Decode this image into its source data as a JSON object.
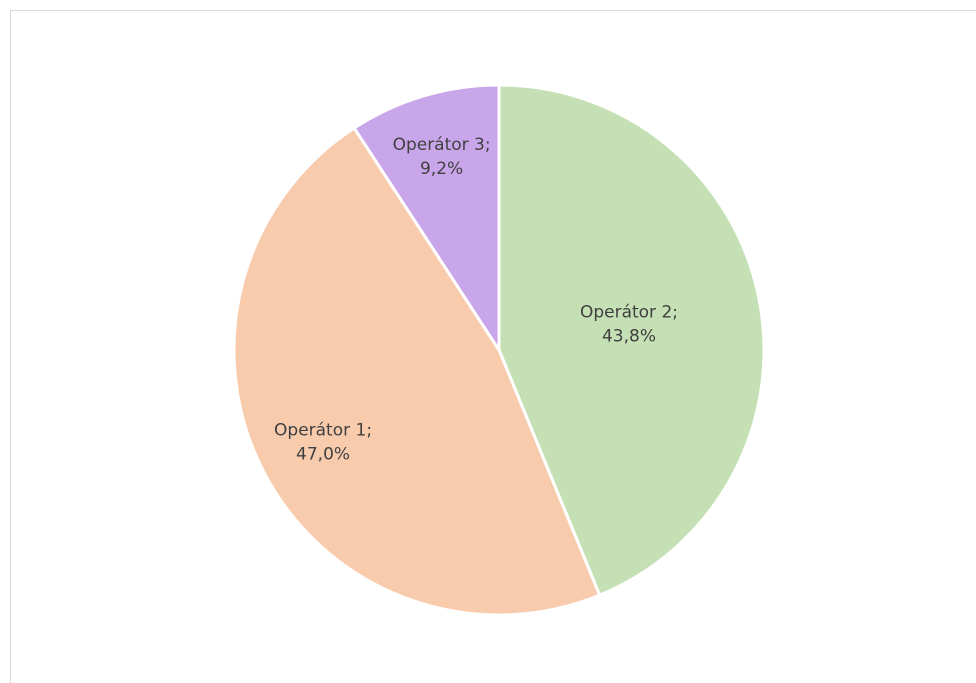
{
  "chart_data": {
    "type": "pie",
    "categories": [
      "Operátor 2",
      "Operátor 1",
      "Operátor 3"
    ],
    "values": [
      43.8,
      47.0,
      9.2
    ],
    "value_labels": [
      "43,8%",
      "47,0%",
      "9,2%"
    ],
    "label_separator": ";",
    "colors": [
      "#c5e0b4",
      "#f8cbad",
      "#c9a6ea"
    ]
  }
}
